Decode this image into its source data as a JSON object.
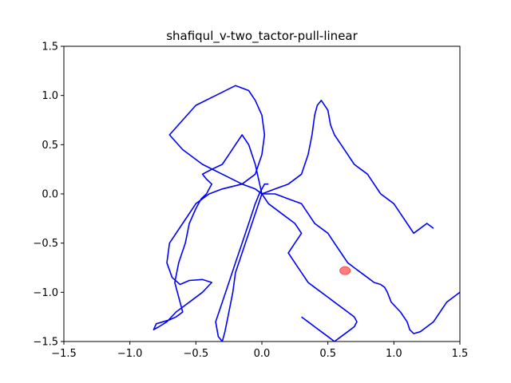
{
  "chart_data": {
    "type": "line",
    "title": "shafiqul_v-two_tactor-pull-linear",
    "xlabel": "",
    "ylabel": "",
    "xlim": [
      -1.5,
      1.5
    ],
    "ylim": [
      -1.5,
      1.5
    ],
    "xticks": [
      -1.5,
      -1.0,
      -0.5,
      0.0,
      0.5,
      1.0,
      1.5
    ],
    "yticks": [
      -1.5,
      -1.0,
      -0.5,
      0.0,
      0.5,
      1.0,
      1.5
    ],
    "xtick_labels": [
      "−1.5",
      "−1.0",
      "−0.5",
      "0.0",
      "0.5",
      "1.0",
      "1.5"
    ],
    "ytick_labels": [
      "−1.5",
      "−1.0",
      "−0.5",
      "0.0",
      "0.5",
      "1.0",
      "1.5"
    ],
    "grid": false,
    "line_color": "#0000ff",
    "target_color": "#ff0000",
    "target": {
      "x": 0.63,
      "y": -0.78,
      "rx": 0.04,
      "ry": 0.04
    },
    "series": [
      {
        "x": [
          0.0,
          -0.05,
          -0.15,
          -0.3,
          -0.45,
          -0.6,
          -0.7,
          -0.6,
          -0.5,
          -0.35,
          -0.2,
          -0.1,
          -0.05,
          0.0,
          0.02,
          0.0,
          -0.05,
          -0.15,
          -0.3,
          -0.4,
          -0.5,
          -0.6,
          -0.7,
          -0.72,
          -0.68,
          -0.62,
          -0.55,
          -0.45,
          -0.38,
          -0.45,
          -0.55,
          -0.65,
          -0.72,
          -0.78,
          -0.82,
          -0.8,
          -0.75,
          -0.7,
          -0.65,
          -0.6,
          -0.62,
          -0.66,
          -0.63,
          -0.58,
          -0.55,
          -0.5,
          -0.46,
          -0.42,
          -0.4,
          -0.38,
          -0.42,
          -0.45,
          -0.38,
          -0.3,
          -0.25,
          -0.2,
          -0.15,
          -0.1,
          -0.05,
          0.0
        ],
        "y": [
          0.0,
          0.05,
          0.1,
          0.2,
          0.3,
          0.45,
          0.6,
          0.75,
          0.9,
          1.0,
          1.1,
          1.05,
          0.95,
          0.8,
          0.6,
          0.4,
          0.2,
          0.1,
          0.05,
          0.0,
          -0.1,
          -0.3,
          -0.5,
          -0.7,
          -0.85,
          -0.92,
          -0.88,
          -0.87,
          -0.9,
          -1.0,
          -1.1,
          -1.2,
          -1.3,
          -1.35,
          -1.38,
          -1.32,
          -1.3,
          -1.28,
          -1.25,
          -1.2,
          -1.1,
          -0.9,
          -0.7,
          -0.5,
          -0.3,
          -0.15,
          -0.05,
          0.0,
          0.05,
          0.1,
          0.15,
          0.2,
          0.25,
          0.3,
          0.4,
          0.5,
          0.6,
          0.5,
          0.3,
          0.0
        ]
      },
      {
        "x": [
          0.0,
          0.1,
          0.2,
          0.3,
          0.35,
          0.4,
          0.45,
          0.5,
          0.55,
          0.6,
          0.65,
          0.7,
          0.75,
          0.8,
          0.85,
          0.9,
          0.93,
          0.95,
          0.98,
          1.05,
          1.1,
          1.12,
          1.15,
          1.2,
          1.25,
          1.3,
          1.35,
          1.4,
          1.45,
          1.5
        ],
        "y": [
          0.0,
          0.0,
          -0.05,
          -0.1,
          -0.2,
          -0.3,
          -0.35,
          -0.4,
          -0.5,
          -0.6,
          -0.7,
          -0.75,
          -0.8,
          -0.85,
          -0.9,
          -0.92,
          -0.95,
          -1.0,
          -1.1,
          -1.2,
          -1.3,
          -1.38,
          -1.42,
          -1.4,
          -1.35,
          -1.3,
          -1.2,
          -1.1,
          -1.05,
          -1.0
        ]
      },
      {
        "x": [
          0.0,
          0.1,
          0.2,
          0.3,
          0.35,
          0.38,
          0.4,
          0.42,
          0.45,
          0.5,
          0.52,
          0.55,
          0.6,
          0.65,
          0.7,
          0.75,
          0.8,
          0.85,
          0.9,
          0.95,
          1.0,
          1.05,
          1.1,
          1.15,
          1.2,
          1.25,
          1.3
        ],
        "y": [
          0.0,
          0.05,
          0.1,
          0.2,
          0.4,
          0.6,
          0.8,
          0.9,
          0.95,
          0.85,
          0.7,
          0.6,
          0.5,
          0.4,
          0.3,
          0.25,
          0.2,
          0.1,
          0.0,
          -0.05,
          -0.1,
          -0.2,
          -0.3,
          -0.4,
          -0.35,
          -0.3,
          -0.35
        ]
      },
      {
        "x": [
          0.0,
          0.05,
          0.15,
          0.25,
          0.3,
          0.25,
          0.2,
          0.25,
          0.3,
          0.35,
          0.4,
          0.45,
          0.5,
          0.55,
          0.6,
          0.65,
          0.7,
          0.72,
          0.7,
          0.65,
          0.6,
          0.55,
          0.5,
          0.45,
          0.4,
          0.35,
          0.3
        ],
        "y": [
          0.0,
          -0.1,
          -0.2,
          -0.3,
          -0.4,
          -0.5,
          -0.6,
          -0.7,
          -0.8,
          -0.9,
          -0.95,
          -1.0,
          -1.05,
          -1.1,
          -1.15,
          -1.2,
          -1.25,
          -1.3,
          -1.35,
          -1.4,
          -1.45,
          -1.5,
          -1.45,
          -1.4,
          -1.35,
          -1.3,
          -1.25
        ]
      },
      {
        "x": [
          0.0,
          -0.05,
          -0.1,
          -0.15,
          -0.2,
          -0.22,
          -0.25,
          -0.28,
          -0.3,
          -0.33,
          -0.35,
          -0.3,
          -0.25,
          -0.2,
          -0.15,
          -0.1,
          -0.05,
          -0.02,
          0.0,
          0.02,
          0.05
        ],
        "y": [
          0.0,
          -0.2,
          -0.4,
          -0.6,
          -0.8,
          -1.0,
          -1.2,
          -1.4,
          -1.5,
          -1.45,
          -1.3,
          -1.1,
          -0.9,
          -0.7,
          -0.5,
          -0.3,
          -0.1,
          0.0,
          0.05,
          0.1,
          0.1
        ]
      }
    ]
  }
}
